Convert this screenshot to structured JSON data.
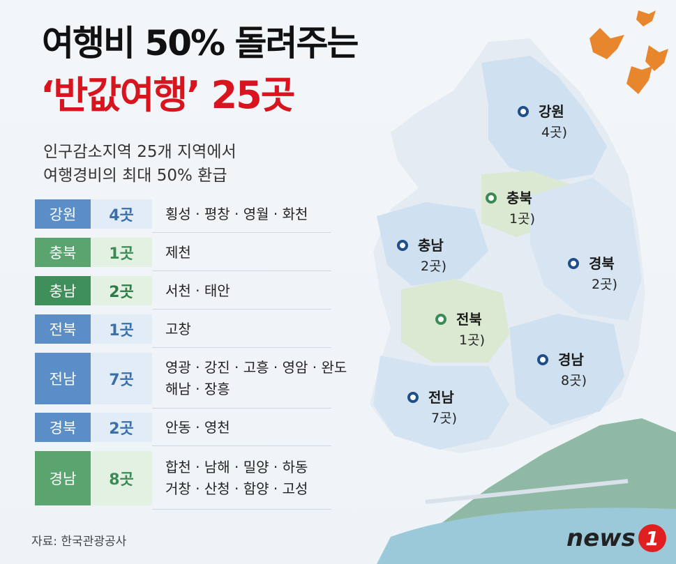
{
  "title": {
    "line1": "여행비 50% 돌려주는",
    "line2": "‘반값여행’ 25곳"
  },
  "subtitle": [
    "인구감소지역 25개 지역에서",
    "여행경비의 최대 50% 환급"
  ],
  "table": {
    "rows": [
      {
        "region": "강원",
        "count": "4곳",
        "places": [
          "횡성 · 평창 · 영월 · 화천"
        ]
      },
      {
        "region": "충북",
        "count": "1곳",
        "places": [
          "제천"
        ]
      },
      {
        "region": "충남",
        "count": "2곳",
        "places": [
          "서천 · 태안"
        ]
      },
      {
        "region": "전북",
        "count": "1곳",
        "places": [
          "고창"
        ]
      },
      {
        "region": "전남",
        "count": "7곳",
        "places": [
          "영광 · 강진 · 고흥 · 영암 · 완도",
          "해남 · 장흥"
        ]
      },
      {
        "region": "경북",
        "count": "2곳",
        "places": [
          "안동 · 영천"
        ]
      },
      {
        "region": "경남",
        "count": "8곳",
        "places": [
          "합천 · 남해 · 밀양 · 하동",
          "거창 · 산청 · 함양 · 고성"
        ]
      }
    ]
  },
  "map": {
    "labels": [
      {
        "region": "강원",
        "count": "4곳)"
      },
      {
        "region": "충북",
        "count": "1곳)"
      },
      {
        "region": "충남",
        "count": "2곳)"
      },
      {
        "region": "경북",
        "count": "2곳)"
      },
      {
        "region": "전북",
        "count": "1곳)"
      },
      {
        "region": "경남",
        "count": "8곳)"
      },
      {
        "region": "전남",
        "count": "7곳)"
      }
    ]
  },
  "source": "자료: 한국관광공사",
  "logo": {
    "text": "news",
    "number": "1"
  }
}
